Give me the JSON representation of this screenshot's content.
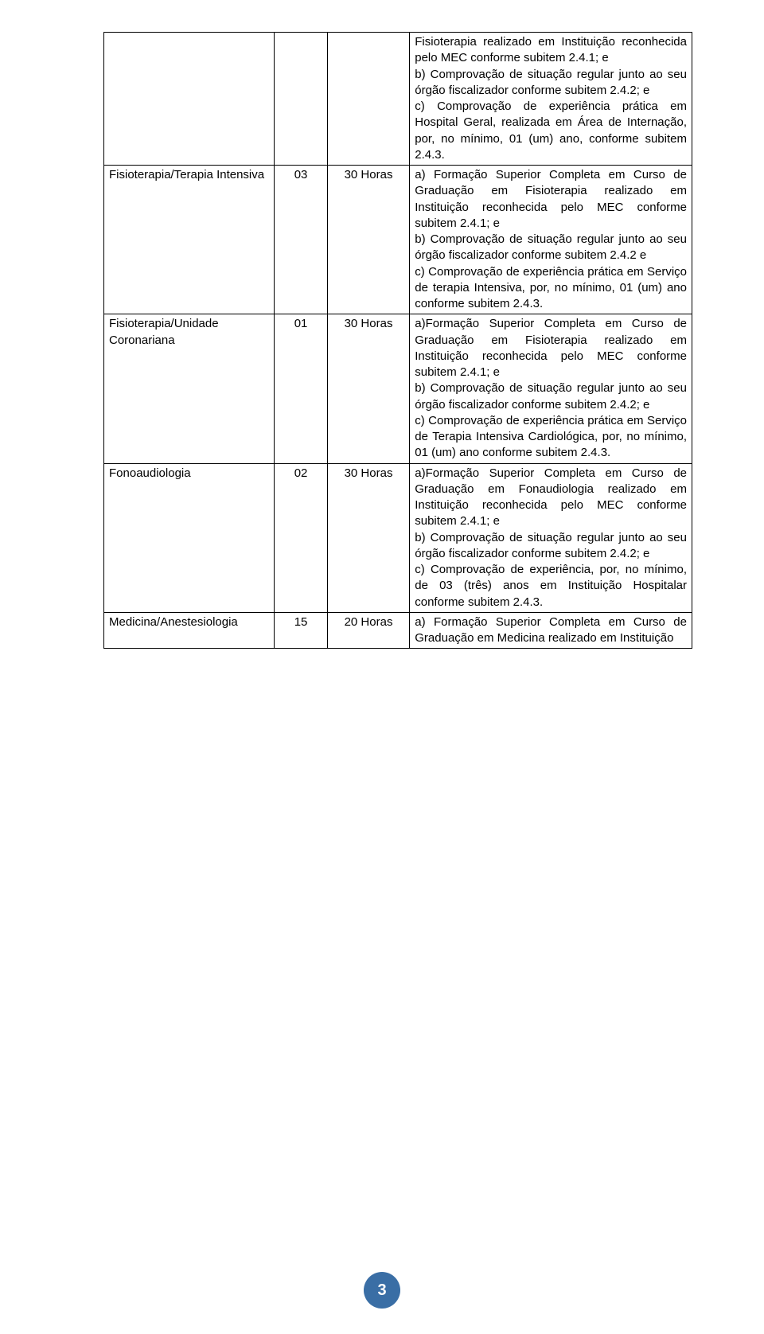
{
  "page_number": "3",
  "colors": {
    "badge_bg": "#3a6ea5",
    "badge_fg": "#ffffff",
    "border": "#000000",
    "text": "#000000"
  },
  "rows": [
    {
      "c1": "",
      "c2": "",
      "c3": "",
      "c4": "Fisioterapia realizado em Instituição reconhecida pelo MEC conforme subitem 2.4.1; e\nb) Comprovação de situação regular junto ao seu órgão fiscalizador conforme subitem 2.4.2; e\nc) Comprovação de experiência prática em Hospital Geral, realizada em Área de Internação, por, no mínimo, 01 (um) ano, conforme subitem 2.4.3."
    },
    {
      "c1": "Fisioterapia/Terapia Intensiva",
      "c2": "03",
      "c3": "30 Horas",
      "c4": "a) Formação Superior Completa em Curso de Graduação em Fisioterapia realizado em Instituição reconhecida pelo MEC conforme subitem 2.4.1; e\nb) Comprovação de situação regular junto ao seu órgão fiscalizador conforme subitem 2.4.2 e\nc) Comprovação de experiência prática em Serviço de terapia Intensiva, por, no mínimo, 01 (um) ano conforme subitem 2.4.3."
    },
    {
      "c1": "Fisioterapia/Unidade Coronariana",
      "c2": "01",
      "c3": "30 Horas",
      "c4": "a)Formação Superior Completa em Curso de Graduação em Fisioterapia realizado em Instituição reconhecida pelo MEC conforme subitem 2.4.1; e\nb) Comprovação de situação regular junto ao seu órgão fiscalizador conforme subitem 2.4.2; e\nc) Comprovação de experiência prática em Serviço de Terapia Intensiva Cardiológica, por, no mínimo, 01 (um) ano conforme subitem 2.4.3."
    },
    {
      "c1": "Fonoaudiologia",
      "c2": "02",
      "c3": "30 Horas",
      "c4": "a)Formação Superior Completa em Curso de Graduação em Fonaudiologia realizado em Instituição reconhecida pelo MEC conforme subitem 2.4.1; e\nb) Comprovação de situação regular junto ao seu órgão fiscalizador conforme subitem 2.4.2; e\nc) Comprovação de experiência, por, no mínimo, de 03 (três) anos em Instituição Hospitalar conforme subitem 2.4.3."
    },
    {
      "c1": "Medicina/Anestesiologia",
      "c2": "15",
      "c3": "20 Horas",
      "c4": "a) Formação Superior Completa em Curso de Graduação em Medicina realizado em Instituição"
    }
  ]
}
